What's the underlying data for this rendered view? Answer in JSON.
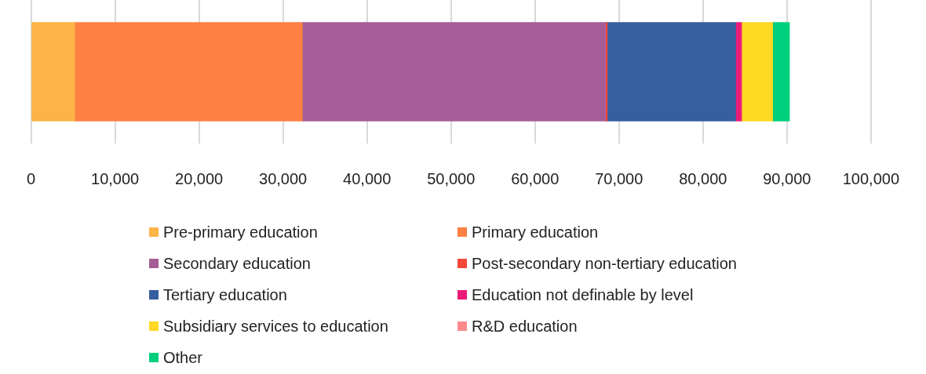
{
  "chart_data": {
    "type": "bar",
    "orientation": "horizontal",
    "stacked": true,
    "categories": [
      null
    ],
    "xlim": [
      0,
      100000
    ],
    "xticks": [
      {
        "value": 0,
        "label": "0"
      },
      {
        "value": 10000,
        "label": "10,000"
      },
      {
        "value": 20000,
        "label": "20,000"
      },
      {
        "value": 30000,
        "label": "30,000"
      },
      {
        "value": 40000,
        "label": "40,000"
      },
      {
        "value": 50000,
        "label": "50,000"
      },
      {
        "value": 60000,
        "label": "60,000"
      },
      {
        "value": 70000,
        "label": "70,000"
      },
      {
        "value": 80000,
        "label": "80,000"
      },
      {
        "value": 90000,
        "label": "90,000"
      },
      {
        "value": 100000,
        "label": "100,000"
      }
    ],
    "grid": "x",
    "legend": "bottom",
    "series": [
      {
        "name": "Pre-primary education",
        "color": "#fdb446",
        "values": [
          5200
        ]
      },
      {
        "name": "Primary education",
        "color": "#ff8042",
        "values": [
          27100
        ]
      },
      {
        "name": "Secondary education",
        "color": "#a45d96",
        "values": [
          36100
        ]
      },
      {
        "name": "Post-secondary non-tertiary education",
        "color": "#f4473a",
        "values": [
          200
        ]
      },
      {
        "name": "Tertiary education",
        "color": "#355f9e",
        "values": [
          15300
        ]
      },
      {
        "name": "Education not definable by level",
        "color": "#eb1c79",
        "values": [
          700
        ]
      },
      {
        "name": "Subsidiary services to education",
        "color": "#ffd924",
        "values": [
          3700
        ]
      },
      {
        "name": "R&D education",
        "color": "#fb8a8a",
        "values": [
          0
        ]
      },
      {
        "name": "Other",
        "color": "#00cf7d",
        "values": [
          2000
        ]
      }
    ]
  }
}
